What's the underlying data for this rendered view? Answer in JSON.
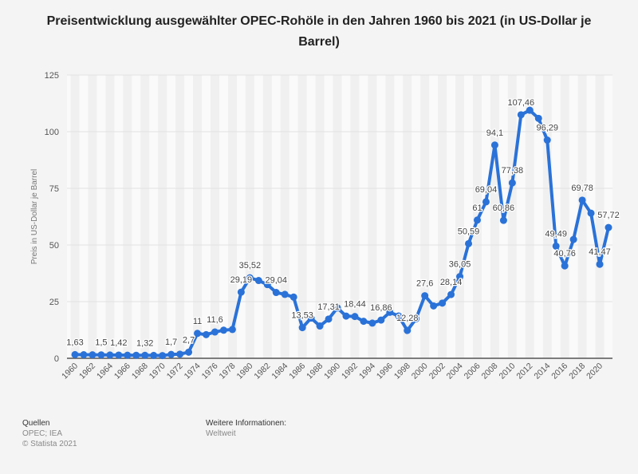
{
  "chart_data": {
    "type": "line",
    "title": "Preisentwicklung ausgewählter OPEC-Rohöle in den Jahren 1960 bis 2021 (in US-Dollar je Barrel)",
    "xlabel": "",
    "ylabel": "Preis in US-Dollar je Barrel",
    "ylim": [
      0,
      125
    ],
    "yticks": [
      "0",
      "25",
      "50",
      "75",
      "100",
      "125"
    ],
    "grid": true,
    "x": [
      1960,
      1961,
      1962,
      1963,
      1964,
      1965,
      1966,
      1967,
      1968,
      1969,
      1970,
      1971,
      1972,
      1973,
      1974,
      1975,
      1976,
      1977,
      1978,
      1979,
      1980,
      1981,
      1982,
      1983,
      1984,
      1985,
      1986,
      1987,
      1988,
      1989,
      1990,
      1991,
      1992,
      1993,
      1994,
      1995,
      1996,
      1997,
      1998,
      1999,
      2000,
      2001,
      2002,
      2003,
      2004,
      2005,
      2006,
      2007,
      2008,
      2009,
      2010,
      2011,
      2012,
      2013,
      2014,
      2015,
      2016,
      2017,
      2018,
      2019,
      2020,
      2021
    ],
    "values": [
      1.63,
      1.57,
      1.52,
      1.5,
      1.45,
      1.42,
      1.36,
      1.33,
      1.32,
      1.27,
      1.21,
      1.7,
      1.82,
      2.7,
      11,
      10.43,
      11.6,
      12.4,
      12.7,
      29.19,
      35.52,
      34.32,
      32.51,
      29.04,
      28.2,
      27.01,
      13.53,
      17.73,
      14.24,
      17.31,
      22.26,
      18.62,
      18.44,
      16.33,
      15.53,
      16.86,
      20.29,
      18.68,
      12.28,
      17.44,
      27.6,
      23.12,
      24.36,
      28.14,
      36.05,
      50.59,
      61,
      69.04,
      94.1,
      60.86,
      77.38,
      107.46,
      109.45,
      105.87,
      96.29,
      49.49,
      40.76,
      52.43,
      69.78,
      64.04,
      41.47,
      57.72
    ],
    "data_labels": [
      {
        "year": 1960,
        "label": "1,63"
      },
      {
        "year": 1963,
        "label": "1,5"
      },
      {
        "year": 1965,
        "label": "1,42"
      },
      {
        "year": 1968,
        "label": "1,32"
      },
      {
        "year": 1971,
        "label": "1,7"
      },
      {
        "year": 1973,
        "label": "2,7"
      },
      {
        "year": 1974,
        "label": "11"
      },
      {
        "year": 1976,
        "label": "11,6"
      },
      {
        "year": 1979,
        "label": "29,19"
      },
      {
        "year": 1980,
        "label": "35,52"
      },
      {
        "year": 1983,
        "label": "29,04"
      },
      {
        "year": 1986,
        "label": "13,53"
      },
      {
        "year": 1989,
        "label": "17,31"
      },
      {
        "year": 1992,
        "label": "18,44"
      },
      {
        "year": 1995,
        "label": "16,86"
      },
      {
        "year": 1998,
        "label": "12,28"
      },
      {
        "year": 2000,
        "label": "27,6"
      },
      {
        "year": 2003,
        "label": "28,14"
      },
      {
        "year": 2004,
        "label": "36,05"
      },
      {
        "year": 2005,
        "label": "50,59"
      },
      {
        "year": 2006,
        "label": "61"
      },
      {
        "year": 2007,
        "label": "69,04"
      },
      {
        "year": 2008,
        "label": "94,1"
      },
      {
        "year": 2009,
        "label": "60,86"
      },
      {
        "year": 2010,
        "label": "77,38"
      },
      {
        "year": 2011,
        "label": "107,46"
      },
      {
        "year": 2014,
        "label": "96,29"
      },
      {
        "year": 2015,
        "label": "49,49"
      },
      {
        "year": 2016,
        "label": "40,76"
      },
      {
        "year": 2018,
        "label": "69,78"
      },
      {
        "year": 2020,
        "label": "41,47"
      },
      {
        "year": 2021,
        "label": "57,72"
      }
    ],
    "series_color": "#2a72d8"
  },
  "footer": {
    "sources_title": "Quellen",
    "sources": "OPEC; IEA",
    "copyright": "© Statista 2021",
    "info_title": "Weitere Informationen:",
    "info": "Weltweit"
  }
}
